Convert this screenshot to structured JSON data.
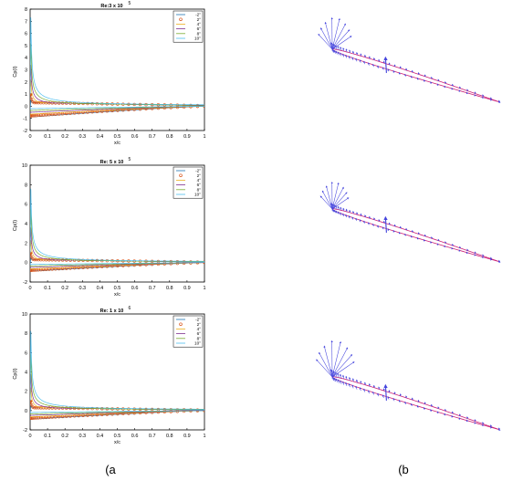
{
  "chart_data": [
    {
      "type": "line",
      "title_main": "Re:3 x 10",
      "title_exp": "5",
      "xlabel": "x/c",
      "ylabel": "Cp(I)",
      "xlim": [
        0,
        1
      ],
      "ylim": [
        -2,
        8
      ],
      "xticks": [
        "0",
        "0.1",
        "0.2",
        "0.3",
        "0.4",
        "0.5",
        "0.6",
        "0.7",
        "0.8",
        "0.9",
        "1"
      ],
      "yticks": [
        "-2",
        "-1",
        "0",
        "1",
        "2",
        "3",
        "4",
        "5",
        "6",
        "7",
        "8"
      ],
      "legend": [
        "-2°",
        "2°",
        "4°",
        "6°",
        "8°",
        "10°"
      ],
      "series": [
        {
          "name": "-2°",
          "color": "#1f77b4",
          "marker": "none",
          "upper_peak": 0.6,
          "upper_lead": -0.3,
          "lower_peak": -0.9
        },
        {
          "name": "2°",
          "color": "#d9541a",
          "marker": "circle",
          "upper_peak": 1.0,
          "upper_lead": 0.9,
          "lower_peak": -0.8
        },
        {
          "name": "4°",
          "color": "#edb120",
          "marker": "none",
          "upper_peak": 2.3,
          "upper_lead": 0.95,
          "lower_peak": -0.65
        },
        {
          "name": "6°",
          "color": "#7e2f8e",
          "marker": "none",
          "upper_peak": 3.6,
          "upper_lead": 1.0,
          "lower_peak": -0.5
        },
        {
          "name": "8°",
          "color": "#77ac30",
          "marker": "none",
          "upper_peak": 5.5,
          "upper_lead": 1.0,
          "lower_peak": -0.35
        },
        {
          "name": "10°",
          "color": "#4dbeee",
          "marker": "none",
          "upper_peak": 7.8,
          "upper_lead": 1.0,
          "lower_peak": -0.2
        }
      ]
    },
    {
      "type": "line",
      "title_main": "Re: 5 x 10",
      "title_exp": "5",
      "xlabel": "x/c",
      "ylabel": "Cp(I)",
      "xlim": [
        0,
        1
      ],
      "ylim": [
        -2,
        10
      ],
      "xticks": [
        "0",
        "0.1",
        "0.2",
        "0.3",
        "0.4",
        "0.5",
        "0.6",
        "0.7",
        "0.8",
        "0.9",
        "1"
      ],
      "yticks": [
        "-2",
        "0",
        "2",
        "4",
        "6",
        "8",
        "10"
      ],
      "legend": [
        "-2°",
        "2°",
        "4°",
        "6°",
        "8°",
        "10°"
      ],
      "series": [
        {
          "name": "-2°",
          "color": "#1f77b4",
          "marker": "none",
          "upper_peak": 0.6,
          "upper_lead": -0.3,
          "lower_peak": -0.9
        },
        {
          "name": "2°",
          "color": "#d9541a",
          "marker": "circle",
          "upper_peak": 1.0,
          "upper_lead": 0.9,
          "lower_peak": -0.8
        },
        {
          "name": "4°",
          "color": "#edb120",
          "marker": "none",
          "upper_peak": 2.4,
          "upper_lead": 0.95,
          "lower_peak": -0.65
        },
        {
          "name": "6°",
          "color": "#7e2f8e",
          "marker": "none",
          "upper_peak": 3.8,
          "upper_lead": 1.0,
          "lower_peak": -0.5
        },
        {
          "name": "8°",
          "color": "#77ac30",
          "marker": "none",
          "upper_peak": 5.9,
          "upper_lead": 1.0,
          "lower_peak": -0.35
        },
        {
          "name": "10°",
          "color": "#4dbeee",
          "marker": "none",
          "upper_peak": 8.1,
          "upper_lead": 1.0,
          "lower_peak": -0.2
        }
      ]
    },
    {
      "type": "line",
      "title_main": "Re: 1 x 10",
      "title_exp": "6",
      "xlabel": "x/c",
      "ylabel": "Cp(I)",
      "xlim": [
        0,
        1
      ],
      "ylim": [
        -2,
        10
      ],
      "xticks": [
        "0",
        "0.1",
        "0.2",
        "0.3",
        "0.4",
        "0.5",
        "0.6",
        "0.7",
        "0.8",
        "0.9",
        "1"
      ],
      "yticks": [
        "-2",
        "0",
        "2",
        "4",
        "6",
        "8",
        "10"
      ],
      "legend": [
        "-2°",
        "2°",
        "4°",
        "6°",
        "8°",
        "10°"
      ],
      "series": [
        {
          "name": "-2°",
          "color": "#1f77b4",
          "marker": "none",
          "upper_peak": 0.6,
          "upper_lead": -0.3,
          "lower_peak": -0.9
        },
        {
          "name": "2°",
          "color": "#d9541a",
          "marker": "circle",
          "upper_peak": 1.0,
          "upper_lead": 0.9,
          "lower_peak": -0.8
        },
        {
          "name": "4°",
          "color": "#edb120",
          "marker": "none",
          "upper_peak": 2.5,
          "upper_lead": 0.95,
          "lower_peak": -0.65
        },
        {
          "name": "6°",
          "color": "#7e2f8e",
          "marker": "none",
          "upper_peak": 4.0,
          "upper_lead": 1.0,
          "lower_peak": -0.5
        },
        {
          "name": "8°",
          "color": "#77ac30",
          "marker": "none",
          "upper_peak": 6.2,
          "upper_lead": 1.0,
          "lower_peak": -0.35
        },
        {
          "name": "10°",
          "color": "#4dbeee",
          "marker": "none",
          "upper_peak": 8.8,
          "upper_lead": 1.0,
          "lower_peak": -0.2
        }
      ]
    }
  ],
  "airfoil_figures": {
    "count": 3,
    "outline_color": "#cc2277",
    "vector_color": "#4444dd"
  },
  "captions": {
    "left": "(a",
    "right": "(b"
  }
}
